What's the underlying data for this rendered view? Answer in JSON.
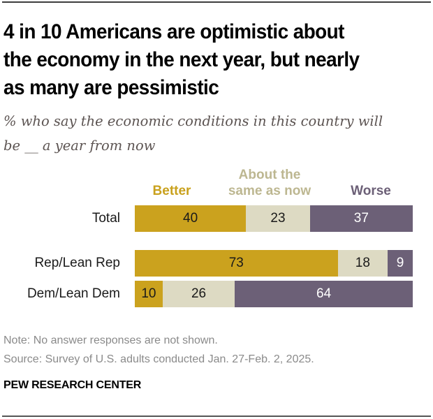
{
  "title": "4 in 10 Americans are optimistic about the economy in the next year, but nearly as many are pessimistic",
  "title_lines": [
    "4 in 10 Americans are optimistic about",
    "the economy in the next year, but nearly",
    "as many are pessimistic"
  ],
  "subtitle": "% who say the economic conditions in this country will be __ a year from now",
  "subtitle_lines": [
    "% who say the economic conditions in this country will",
    "be __ a year from now"
  ],
  "colors": {
    "better": "#CBA21E",
    "same": "#DDDAC3",
    "same_label": "#BDB791",
    "worse": "#6C6077",
    "worse_label": "#6C6077",
    "better_label": "#C9A11D"
  },
  "chart_data": {
    "type": "bar",
    "orientation": "horizontal",
    "stacked": true,
    "title": "4 in 10 Americans are optimistic about the economy in the next year, but nearly as many are pessimistic",
    "subtitle": "% who say the economic conditions in this country will be __ a year from now",
    "categories": [
      "Total",
      "Rep/Lean Rep",
      "Dem/Lean Dem"
    ],
    "series": [
      {
        "name": "Better",
        "values": [
          40,
          73,
          10
        ]
      },
      {
        "name": "About the same as now",
        "values": [
          23,
          18,
          26
        ]
      },
      {
        "name": "Worse",
        "values": [
          37,
          9,
          64
        ]
      }
    ],
    "legend_labels": [
      "Better",
      "About the\nsame as now",
      "Worse"
    ],
    "legend_position": "top",
    "xlim": [
      0,
      100
    ],
    "xlabel": "",
    "ylabel": "",
    "grid": false
  },
  "footer": {
    "note": "Note: No answer responses are not shown.",
    "source": "Source: Survey of U.S. adults conducted Jan. 27-Feb. 2, 2025.",
    "brand": "PEW RESEARCH CENTER"
  }
}
